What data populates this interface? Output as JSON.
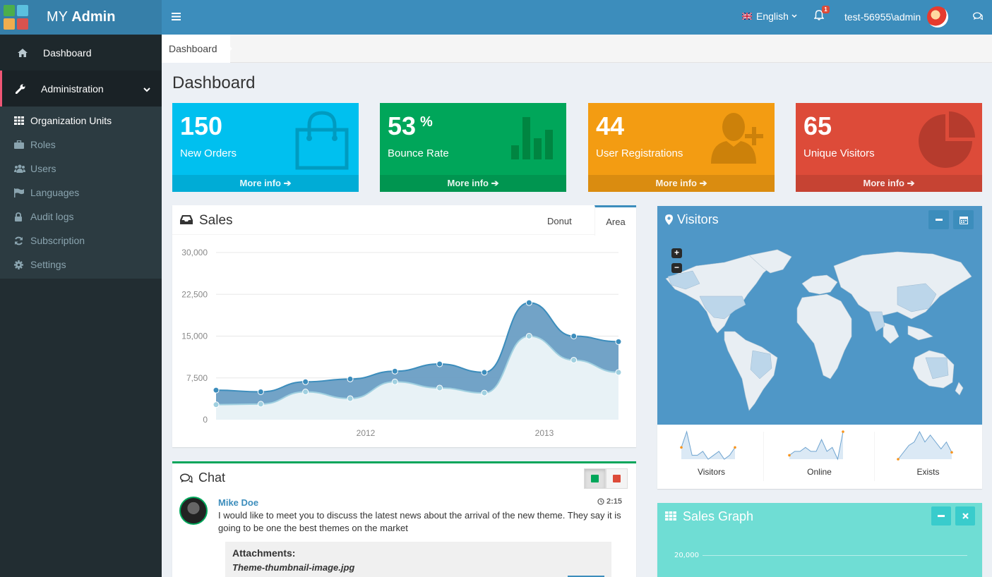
{
  "app": {
    "title_regular": "MY ",
    "title_bold": "Admin"
  },
  "colors": {
    "primary": "#3c8dbc",
    "sidebar": "#222d32",
    "aqua": "#00c0ef",
    "green": "#00a65a",
    "yellow": "#f39c12",
    "red": "#dd4b39"
  },
  "header": {
    "language": "English",
    "notification_count": "1",
    "username": "test-56955\\admin"
  },
  "sidebar": {
    "items": [
      {
        "label": "Dashboard",
        "icon": "home-icon"
      },
      {
        "label": "Administration",
        "icon": "wrench-icon"
      }
    ],
    "submenu": [
      {
        "label": "Organization Units",
        "icon": "grid-icon"
      },
      {
        "label": "Roles",
        "icon": "briefcase-icon"
      },
      {
        "label": "Users",
        "icon": "users-icon"
      },
      {
        "label": "Languages",
        "icon": "flag-icon"
      },
      {
        "label": "Audit logs",
        "icon": "lock-icon"
      },
      {
        "label": "Subscription",
        "icon": "refresh-icon"
      },
      {
        "label": "Settings",
        "icon": "cog-icon"
      }
    ]
  },
  "breadcrumb": {
    "current": "Dashboard"
  },
  "page": {
    "title": "Dashboard"
  },
  "stats": [
    {
      "value": "150",
      "suffix": "",
      "label": "New Orders",
      "more": "More info",
      "icon": "shopping-bag-icon",
      "color": "#00c0ef"
    },
    {
      "value": "53",
      "suffix": "%",
      "label": "Bounce Rate",
      "more": "More info",
      "icon": "bar-chart-icon",
      "color": "#00a65a"
    },
    {
      "value": "44",
      "suffix": "",
      "label": "User Registrations",
      "more": "More info",
      "icon": "user-plus-icon",
      "color": "#f39c12"
    },
    {
      "value": "65",
      "suffix": "",
      "label": "Unique Visitors",
      "more": "More info",
      "icon": "pie-chart-icon",
      "color": "#dd4b39"
    }
  ],
  "sales": {
    "title": "Sales",
    "tabs": [
      "Donut",
      "Area"
    ],
    "active_tab": "Area"
  },
  "chart_data": {
    "type": "area",
    "ylim": [
      0,
      30000
    ],
    "yticks": [
      "30,000",
      "22,500",
      "15,000",
      "7,500",
      "0"
    ],
    "xticks": [
      "2012",
      "2013"
    ],
    "series": [
      {
        "values": [
          5300,
          5000,
          6800,
          7300,
          8700,
          10000,
          8500,
          21000,
          15000,
          14000
        ],
        "color": "#3c8dbc"
      },
      {
        "values": [
          2700,
          2800,
          5000,
          3800,
          6800,
          5700,
          4800,
          15000,
          10700,
          8500
        ],
        "color": "#a0d0e0"
      }
    ]
  },
  "chat": {
    "title": "Chat",
    "messages": [
      {
        "name": "Mike Doe",
        "time": "2:15",
        "text": "I would like to meet you to discuss the latest news about the arrival of the new theme. They say it is going to be one the best themes on the market",
        "attachments_label": "Attachments:",
        "attachment_file": "Theme-thumbnail-image.jpg"
      }
    ]
  },
  "visitors": {
    "title": "Visitors",
    "sparklines": [
      {
        "label": "Visitors",
        "values": [
          5,
          9,
          3,
          3,
          4,
          2,
          3,
          4,
          2,
          3,
          5
        ]
      },
      {
        "label": "Online",
        "values": [
          2,
          3,
          3,
          4,
          3,
          3,
          6,
          3,
          4,
          1,
          8
        ]
      },
      {
        "label": "Exists",
        "values": [
          1,
          3,
          5,
          6,
          9,
          6,
          8,
          6,
          4,
          6,
          3
        ]
      }
    ]
  },
  "sales_graph": {
    "title": "Sales Graph",
    "ytick": "20,000"
  }
}
